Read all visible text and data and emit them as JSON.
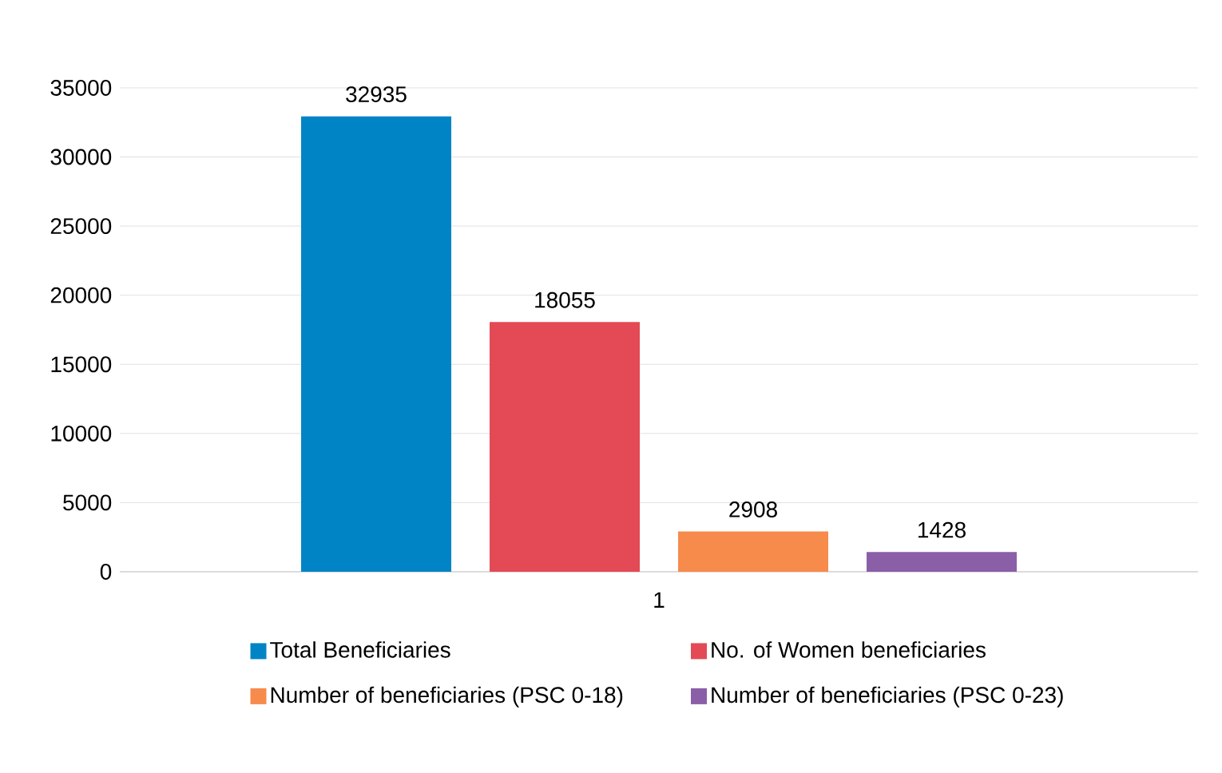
{
  "chart_data": {
    "type": "bar",
    "categories": [
      "1"
    ],
    "series": [
      {
        "name": "Total Beneficiaries",
        "color": "#0084c6",
        "values": [
          32935
        ]
      },
      {
        "name": "No. of Women beneficiaries",
        "color": "#e34a55",
        "values": [
          18055
        ]
      },
      {
        "name": "Number of beneficiaries (PSC 0-18)",
        "color": "#f68b4c",
        "values": [
          2908
        ]
      },
      {
        "name": "Number of beneficiaries (PSC 0-23)",
        "color": "#8b5ea8",
        "values": [
          1428
        ]
      }
    ],
    "ylim": [
      0,
      35000
    ],
    "yticks": [
      0,
      5000,
      10000,
      15000,
      20000,
      25000,
      30000,
      35000
    ],
    "grid": "y",
    "legend": "bottom",
    "data_labels": true
  }
}
